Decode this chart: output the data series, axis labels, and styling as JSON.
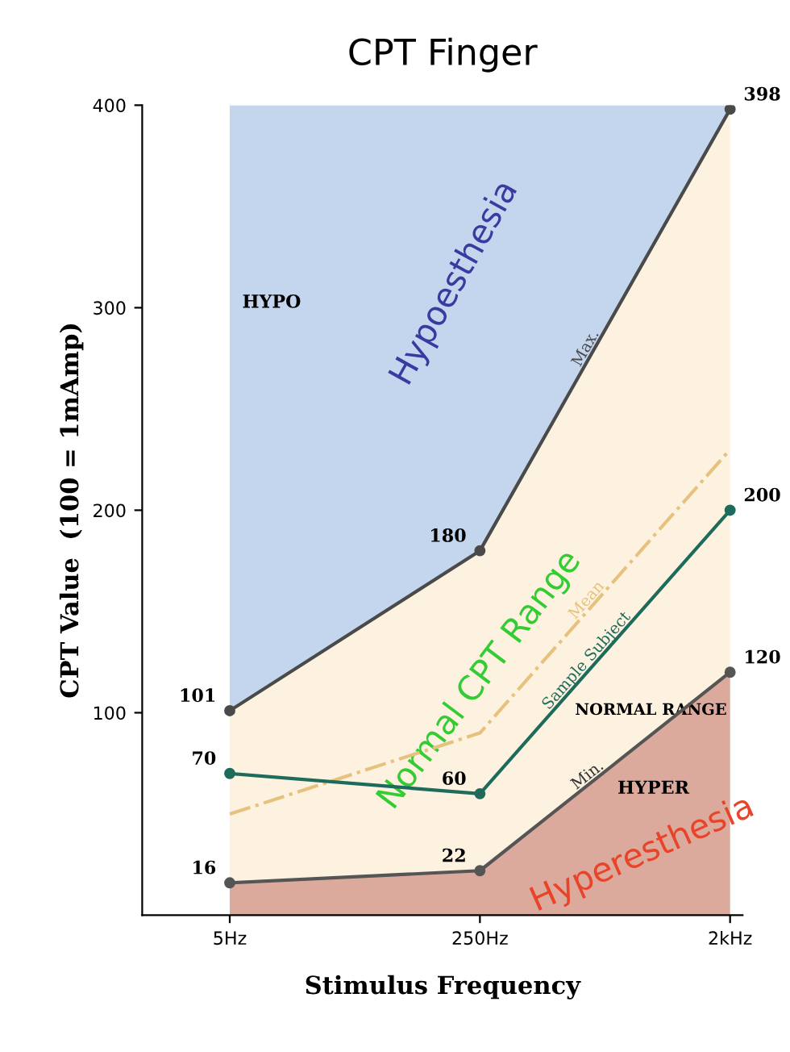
{
  "chart_data": {
    "type": "line",
    "title": "CPT Finger",
    "xlabel": "Stimulus Frequency",
    "ylabel": "CPT Value  (100 = 1mAmp)",
    "categories": [
      "5Hz",
      "250Hz",
      "2kHz"
    ],
    "ylim": [
      0,
      400
    ],
    "yticks": [
      100,
      200,
      300,
      400
    ],
    "grid": false,
    "series": [
      {
        "name": "Max.",
        "color": "#4a4a4a",
        "values": [
          101,
          180,
          398
        ],
        "value_labels": [
          "101",
          "180",
          "398"
        ],
        "marker": "circle",
        "lower": [
          101,
          180,
          398
        ],
        "upper": [
          400,
          400,
          400
        ]
      },
      {
        "name": "Mean",
        "color": "#e6c27e",
        "values": [
          50,
          90,
          230
        ],
        "line_style": "dashed",
        "lower": [
          16,
          22,
          120
        ],
        "upper": [
          101,
          180,
          398
        ]
      },
      {
        "name": "Min.",
        "type": "area",
        "color": "#dcaa9c",
        "values": [
          16,
          22,
          120
        ],
        "value_labels": [
          "16",
          "22",
          "120"
        ],
        "marker": "circle"
      },
      {
        "name": "Sample Subject",
        "color": "#1e6b5c",
        "values": [
          70,
          60,
          200
        ],
        "value_labels": [
          "70",
          "60",
          "200"
        ],
        "marker": "circle"
      }
    ],
    "annotations": [
      "Hypoesthesia",
      "Normal CPT Range",
      "Hyperesthesia",
      "HYPO",
      "NORMAL RANGE",
      "HYPER"
    ]
  }
}
